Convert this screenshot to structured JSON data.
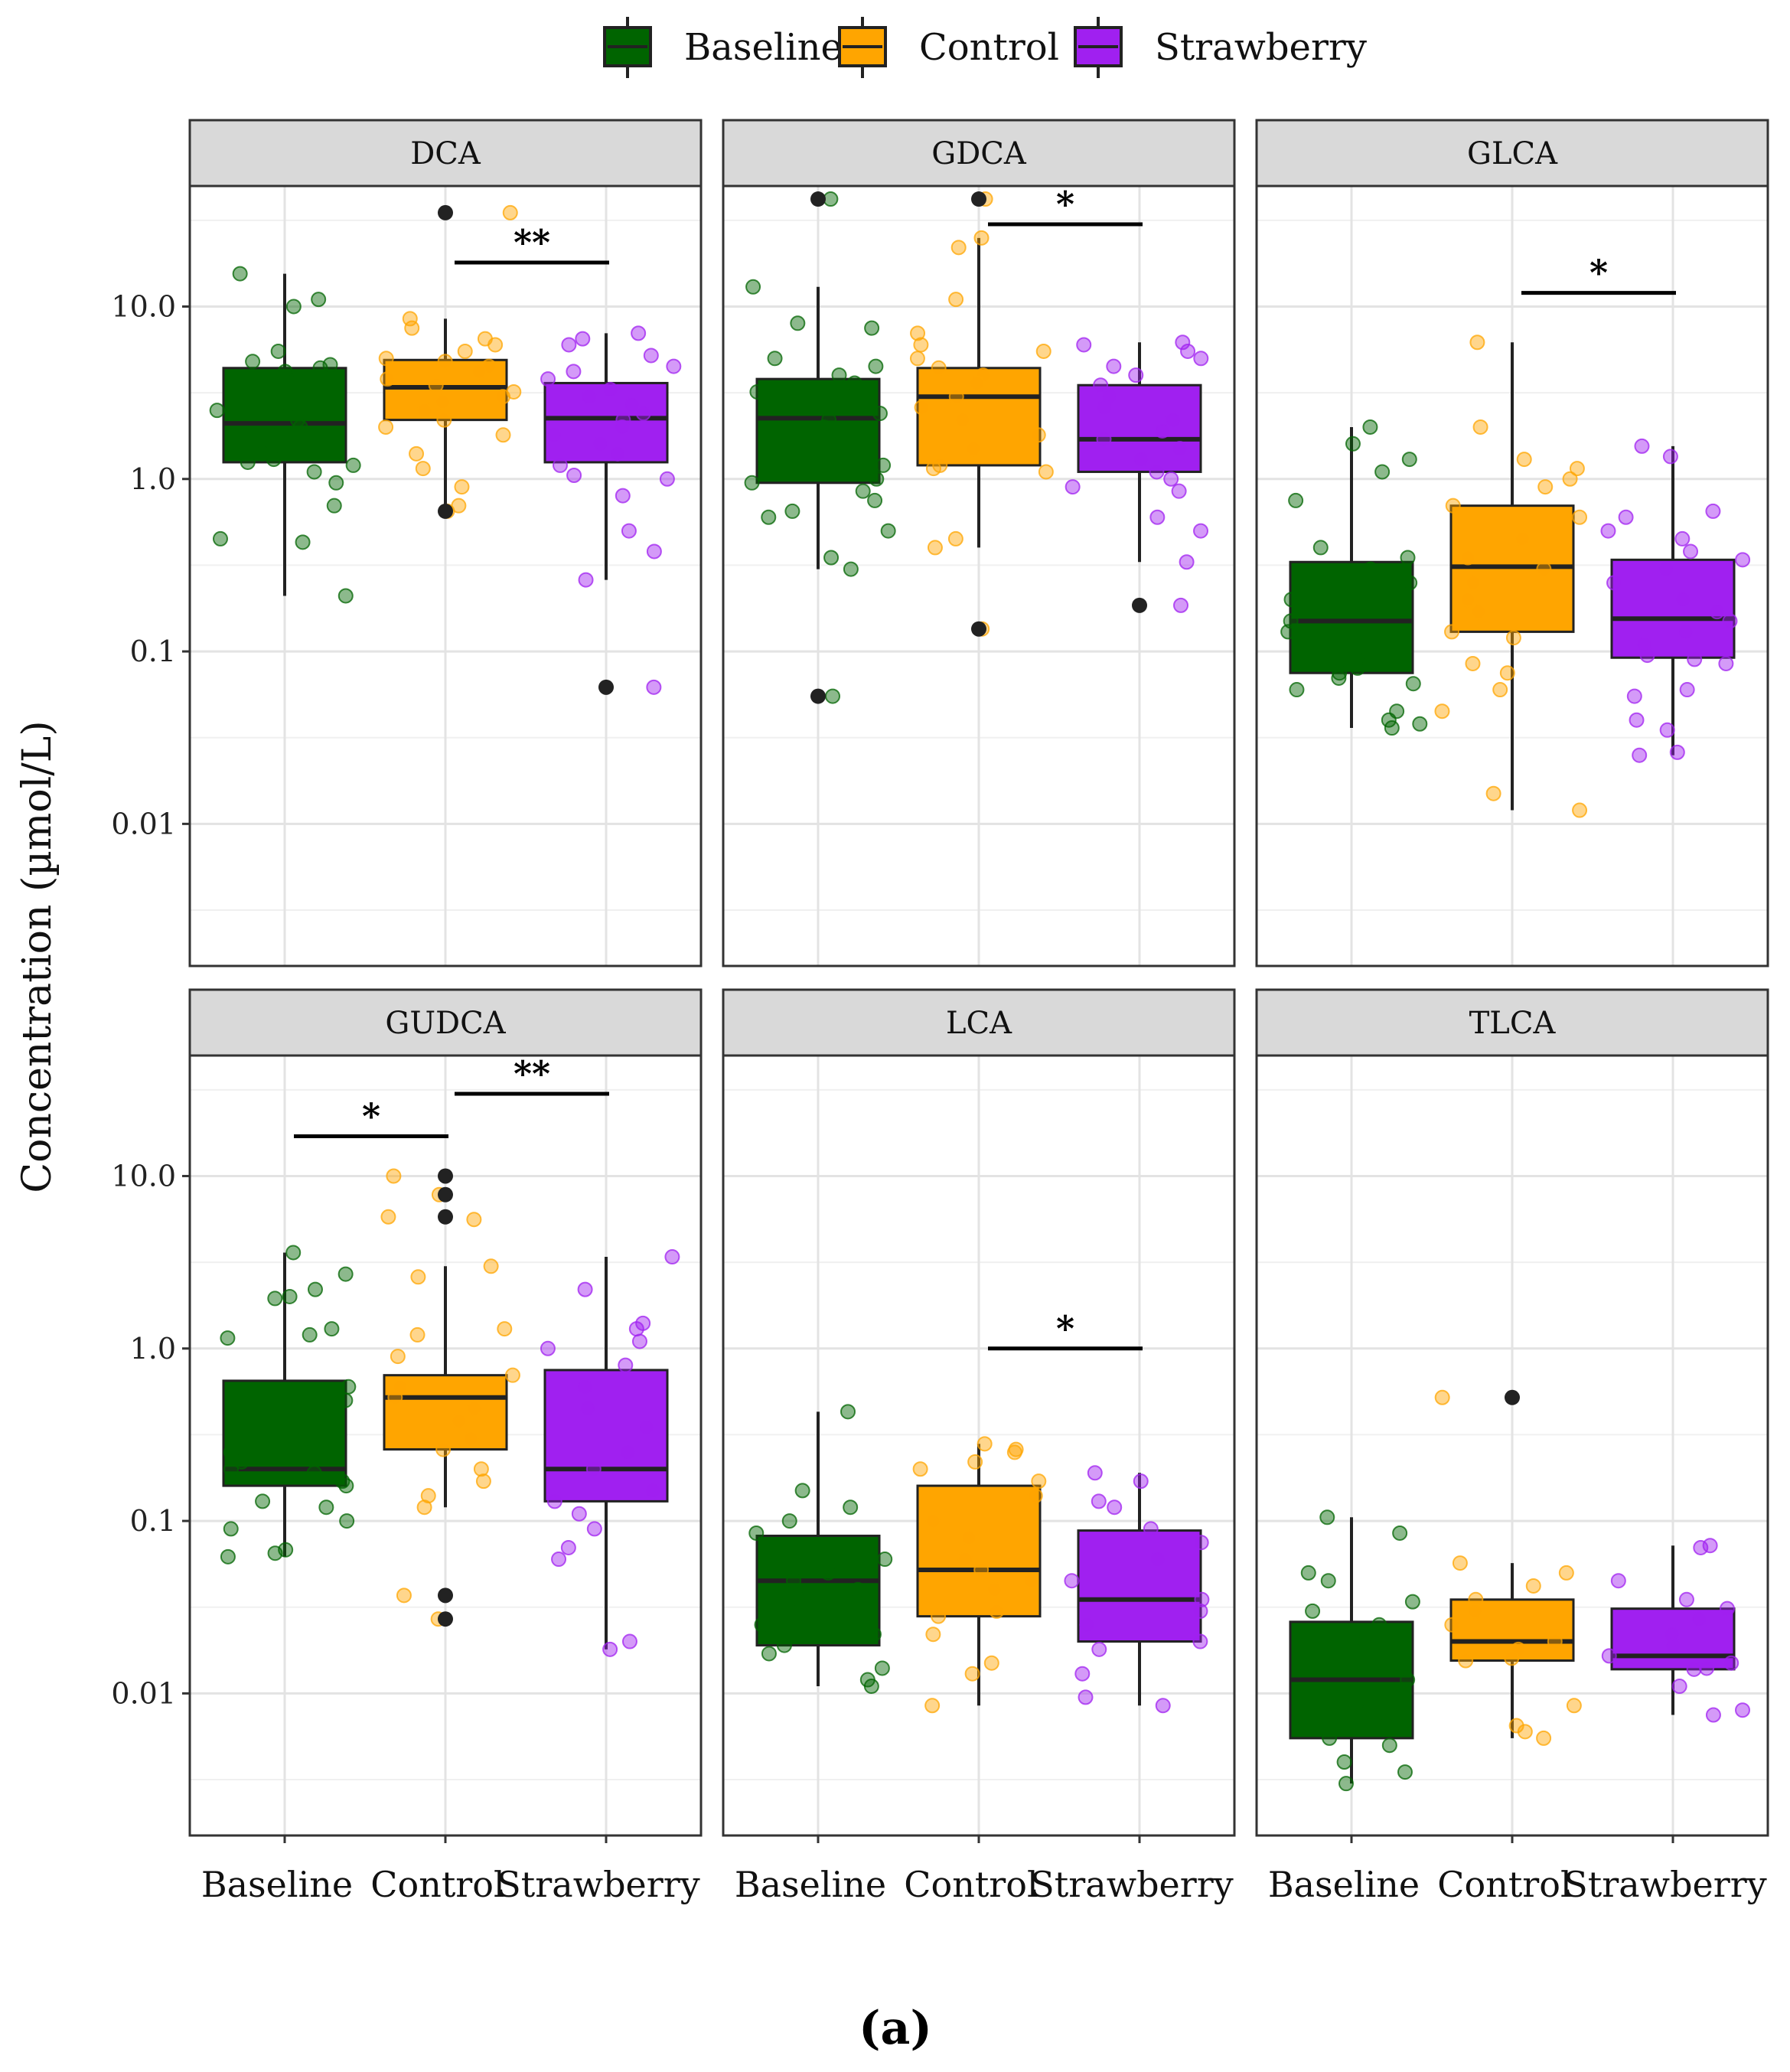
{
  "legend": {
    "items": [
      {
        "label": "Baseline",
        "color": "#006400"
      },
      {
        "label": "Control",
        "color": "#FFA500"
      },
      {
        "label": "Strawberry",
        "color": "#A020F0"
      }
    ]
  },
  "ylabel": "Concentration (µmol/L)",
  "caption": "(a)",
  "chart_data": [
    {
      "type": "box",
      "title": "DCA",
      "scale": "log10",
      "categories": [
        "Baseline",
        "Control",
        "Strawberry"
      ],
      "y_ticks": [
        {
          "value": 10,
          "label": "10.0"
        },
        {
          "value": 1,
          "label": "1.0"
        },
        {
          "value": 0.1,
          "label": "0.1"
        },
        {
          "value": 0.01,
          "label": "0.01"
        }
      ],
      "boxes": [
        {
          "group": "Baseline",
          "q1": 1.25,
          "median": 2.1,
          "q3": 4.4,
          "whisker_low": 0.21,
          "whisker_high": 15.5,
          "outliers": [],
          "points": [
            15.5,
            11,
            10,
            5.5,
            4.8,
            4.6,
            4.4,
            4.2,
            3.8,
            2.7,
            2.5,
            2.2,
            2.0,
            1.8,
            1.6,
            1.4,
            1.3,
            1.25,
            1.2,
            1.1,
            0.95,
            0.7,
            0.45,
            0.43,
            0.21
          ]
        },
        {
          "group": "Control",
          "q1": 2.2,
          "median": 3.4,
          "q3": 4.9,
          "whisker_low": 0.7,
          "whisker_high": 8.5,
          "outliers": [
            35,
            0.65
          ],
          "points": [
            35,
            8.5,
            7.5,
            6.5,
            6.0,
            5.5,
            5.0,
            4.8,
            4.5,
            4.2,
            3.8,
            3.5,
            3.2,
            3.0,
            2.8,
            2.5,
            2.2,
            2.0,
            1.8,
            1.4,
            1.15,
            0.9,
            0.7,
            0.65
          ]
        },
        {
          "group": "Strawberry",
          "q1": 1.25,
          "median": 2.25,
          "q3": 3.6,
          "whisker_low": 0.26,
          "whisker_high": 7.0,
          "outliers": [
            0.062
          ],
          "points": [
            7.0,
            6.5,
            6.0,
            5.2,
            4.5,
            4.2,
            3.8,
            3.3,
            3.0,
            2.7,
            2.4,
            2.2,
            2.0,
            1.8,
            1.6,
            1.4,
            1.2,
            1.05,
            1.0,
            0.8,
            0.5,
            0.38,
            0.26,
            0.062
          ]
        }
      ],
      "significance": [
        {
          "from": "Control",
          "to": "Strawberry",
          "label": "**",
          "y": 18
        }
      ]
    },
    {
      "type": "box",
      "title": "GDCA",
      "scale": "log10",
      "categories": [
        "Baseline",
        "Control",
        "Strawberry"
      ],
      "y_ticks": [
        {
          "value": 10,
          "label": "10.0"
        },
        {
          "value": 1,
          "label": "1.0"
        },
        {
          "value": 0.1,
          "label": "0.1"
        },
        {
          "value": 0.01,
          "label": "0.01"
        }
      ],
      "boxes": [
        {
          "group": "Baseline",
          "q1": 0.95,
          "median": 2.25,
          "q3": 3.8,
          "whisker_low": 0.3,
          "whisker_high": 13,
          "outliers": [
            42,
            0.055
          ],
          "points": [
            42,
            13,
            8,
            7.5,
            5,
            4.5,
            4.0,
            3.6,
            3.2,
            2.8,
            2.4,
            2.2,
            2.0,
            1.7,
            1.4,
            1.2,
            1.0,
            0.95,
            0.85,
            0.75,
            0.65,
            0.6,
            0.5,
            0.35,
            0.3,
            0.055
          ]
        },
        {
          "group": "Control",
          "q1": 1.2,
          "median": 3.0,
          "q3": 4.4,
          "whisker_low": 0.4,
          "whisker_high": 25,
          "outliers": [
            42,
            0.135
          ],
          "points": [
            42,
            25,
            22,
            11,
            7,
            6,
            5.5,
            5.0,
            4.4,
            4.0,
            3.6,
            3.0,
            2.6,
            2.2,
            1.8,
            1.5,
            1.2,
            1.15,
            1.1,
            0.45,
            0.4,
            0.135
          ]
        },
        {
          "group": "Strawberry",
          "q1": 1.1,
          "median": 1.7,
          "q3": 3.5,
          "whisker_low": 0.33,
          "whisker_high": 6.2,
          "outliers": [
            0.185
          ],
          "points": [
            6.2,
            6.0,
            5.5,
            5.0,
            4.5,
            4.0,
            3.5,
            3.0,
            2.6,
            2.2,
            1.9,
            1.7,
            1.5,
            1.3,
            1.1,
            1.0,
            0.9,
            0.85,
            0.6,
            0.5,
            0.33,
            0.185
          ]
        }
      ],
      "significance": [
        {
          "from": "Control",
          "to": "Strawberry",
          "label": "*",
          "y": 30
        }
      ]
    },
    {
      "type": "box",
      "title": "GLCA",
      "scale": "log10",
      "categories": [
        "Baseline",
        "Control",
        "Strawberry"
      ],
      "y_ticks": [
        {
          "value": 10,
          "label": "10.0"
        },
        {
          "value": 1,
          "label": "1.0"
        },
        {
          "value": 0.1,
          "label": "0.1"
        },
        {
          "value": 0.01,
          "label": "0.01"
        }
      ],
      "boxes": [
        {
          "group": "Baseline",
          "q1": 0.075,
          "median": 0.15,
          "q3": 0.33,
          "whisker_low": 0.036,
          "whisker_high": 2.0,
          "outliers": [],
          "points": [
            2.0,
            1.6,
            1.3,
            1.1,
            0.75,
            0.4,
            0.35,
            0.3,
            0.25,
            0.2,
            0.18,
            0.15,
            0.13,
            0.11,
            0.09,
            0.08,
            0.075,
            0.07,
            0.065,
            0.06,
            0.045,
            0.04,
            0.038,
            0.036
          ]
        },
        {
          "group": "Control",
          "q1": 0.13,
          "median": 0.31,
          "q3": 0.7,
          "whisker_low": 0.012,
          "whisker_high": 6.2,
          "outliers": [],
          "points": [
            6.2,
            2.0,
            1.3,
            1.15,
            1.0,
            0.9,
            0.7,
            0.6,
            0.45,
            0.35,
            0.3,
            0.25,
            0.2,
            0.17,
            0.13,
            0.12,
            0.085,
            0.075,
            0.06,
            0.045,
            0.015,
            0.012
          ]
        },
        {
          "group": "Strawberry",
          "q1": 0.092,
          "median": 0.155,
          "q3": 0.34,
          "whisker_low": 0.025,
          "whisker_high": 1.55,
          "outliers": [],
          "points": [
            1.55,
            1.35,
            0.65,
            0.6,
            0.5,
            0.45,
            0.38,
            0.34,
            0.3,
            0.25,
            0.2,
            0.17,
            0.15,
            0.13,
            0.11,
            0.095,
            0.09,
            0.085,
            0.06,
            0.055,
            0.04,
            0.035,
            0.026,
            0.025
          ]
        }
      ],
      "significance": [
        {
          "from": "Control",
          "to": "Strawberry",
          "label": "*",
          "y": 12
        }
      ]
    },
    {
      "type": "box",
      "title": "GUDCA",
      "scale": "log10",
      "categories": [
        "Baseline",
        "Control",
        "Strawberry"
      ],
      "y_ticks": [
        {
          "value": 10,
          "label": "10.0"
        },
        {
          "value": 1,
          "label": "1.0"
        },
        {
          "value": 0.1,
          "label": "0.1"
        },
        {
          "value": 0.01,
          "label": "0.01"
        }
      ],
      "boxes": [
        {
          "group": "Baseline",
          "q1": 0.16,
          "median": 0.2,
          "q3": 0.65,
          "whisker_low": 0.062,
          "whisker_high": 3.6,
          "outliers": [],
          "points": [
            3.6,
            2.7,
            2.2,
            2.0,
            1.95,
            1.3,
            1.2,
            1.15,
            0.6,
            0.5,
            0.3,
            0.25,
            0.22,
            0.2,
            0.19,
            0.17,
            0.16,
            0.13,
            0.12,
            0.1,
            0.09,
            0.068,
            0.065,
            0.062
          ]
        },
        {
          "group": "Control",
          "q1": 0.26,
          "median": 0.52,
          "q3": 0.7,
          "whisker_low": 0.12,
          "whisker_high": 3.0,
          "outliers": [
            10,
            7.8,
            5.8,
            0.037,
            0.027
          ],
          "points": [
            10,
            7.8,
            5.8,
            5.6,
            3.0,
            2.6,
            1.3,
            1.2,
            0.9,
            0.7,
            0.6,
            0.52,
            0.45,
            0.38,
            0.3,
            0.26,
            0.2,
            0.17,
            0.14,
            0.12,
            0.037,
            0.027
          ]
        },
        {
          "group": "Strawberry",
          "q1": 0.13,
          "median": 0.2,
          "q3": 0.75,
          "whisker_low": 0.018,
          "whisker_high": 3.4,
          "outliers": [],
          "points": [
            3.4,
            2.2,
            1.4,
            1.3,
            1.1,
            1.0,
            0.8,
            0.6,
            0.45,
            0.35,
            0.25,
            0.2,
            0.15,
            0.13,
            0.11,
            0.09,
            0.07,
            0.06,
            0.02,
            0.018
          ]
        }
      ],
      "significance": [
        {
          "from": "Baseline",
          "to": "Control",
          "label": "*",
          "y": 17
        },
        {
          "from": "Control",
          "to": "Strawberry",
          "label": "**",
          "y": 30
        }
      ]
    },
    {
      "type": "box",
      "title": "LCA",
      "scale": "log10",
      "categories": [
        "Baseline",
        "Control",
        "Strawberry"
      ],
      "y_ticks": [
        {
          "value": 10,
          "label": "10.0"
        },
        {
          "value": 1,
          "label": "1.0"
        },
        {
          "value": 0.1,
          "label": "0.1"
        },
        {
          "value": 0.01,
          "label": "0.01"
        }
      ],
      "boxes": [
        {
          "group": "Baseline",
          "q1": 0.019,
          "median": 0.045,
          "q3": 0.082,
          "whisker_low": 0.011,
          "whisker_high": 0.43,
          "outliers": [],
          "points": [
            0.43,
            0.15,
            0.12,
            0.1,
            0.085,
            0.07,
            0.06,
            0.05,
            0.045,
            0.04,
            0.035,
            0.03,
            0.025,
            0.022,
            0.019,
            0.017,
            0.014,
            0.012,
            0.011
          ]
        },
        {
          "group": "Control",
          "q1": 0.028,
          "median": 0.052,
          "q3": 0.16,
          "whisker_low": 0.0085,
          "whisker_high": 0.28,
          "outliers": [],
          "points": [
            0.28,
            0.26,
            0.25,
            0.22,
            0.2,
            0.17,
            0.14,
            0.1,
            0.08,
            0.06,
            0.052,
            0.045,
            0.04,
            0.03,
            0.028,
            0.022,
            0.015,
            0.013,
            0.0085
          ]
        },
        {
          "group": "Strawberry",
          "q1": 0.02,
          "median": 0.035,
          "q3": 0.088,
          "whisker_low": 0.0085,
          "whisker_high": 0.19,
          "outliers": [],
          "points": [
            0.19,
            0.17,
            0.13,
            0.12,
            0.09,
            0.075,
            0.06,
            0.045,
            0.035,
            0.03,
            0.025,
            0.02,
            0.018,
            0.013,
            0.0095,
            0.0085
          ]
        }
      ],
      "significance": [
        {
          "from": "Control",
          "to": "Strawberry",
          "label": "*",
          "y": 1.0
        }
      ]
    },
    {
      "type": "box",
      "title": "TLCA",
      "scale": "log10",
      "categories": [
        "Baseline",
        "Control",
        "Strawberry"
      ],
      "y_ticks": [
        {
          "value": 10,
          "label": "10.0"
        },
        {
          "value": 1,
          "label": "1.0"
        },
        {
          "value": 0.1,
          "label": "0.1"
        },
        {
          "value": 0.01,
          "label": "0.01"
        }
      ],
      "boxes": [
        {
          "group": "Baseline",
          "q1": 0.0055,
          "median": 0.012,
          "q3": 0.026,
          "whisker_low": 0.003,
          "whisker_high": 0.105,
          "outliers": [],
          "points": [
            0.105,
            0.085,
            0.05,
            0.045,
            0.034,
            0.03,
            0.025,
            0.02,
            0.015,
            0.012,
            0.01,
            0.008,
            0.0065,
            0.0055,
            0.005,
            0.004,
            0.0035,
            0.003
          ]
        },
        {
          "group": "Control",
          "q1": 0.0155,
          "median": 0.02,
          "q3": 0.035,
          "whisker_low": 0.0055,
          "whisker_high": 0.057,
          "outliers": [
            0.52
          ],
          "points": [
            0.52,
            0.057,
            0.05,
            0.042,
            0.035,
            0.03,
            0.025,
            0.02,
            0.018,
            0.016,
            0.0155,
            0.0085,
            0.0065,
            0.006,
            0.0055
          ]
        },
        {
          "group": "Strawberry",
          "q1": 0.0138,
          "median": 0.0165,
          "q3": 0.031,
          "whisker_low": 0.0075,
          "whisker_high": 0.072,
          "outliers": [],
          "points": [
            0.072,
            0.07,
            0.045,
            0.035,
            0.031,
            0.027,
            0.022,
            0.019,
            0.0165,
            0.015,
            0.014,
            0.0138,
            0.011,
            0.008,
            0.0075
          ]
        }
      ],
      "significance": []
    }
  ]
}
